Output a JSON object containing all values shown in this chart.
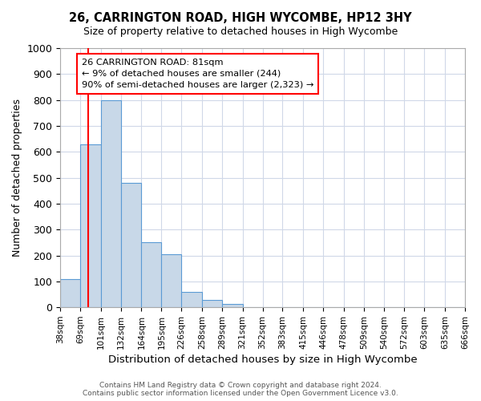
{
  "title": "26, CARRINGTON ROAD, HIGH WYCOMBE, HP12 3HY",
  "subtitle": "Size of property relative to detached houses in High Wycombe",
  "xlabel": "Distribution of detached houses by size in High Wycombe",
  "ylabel": "Number of detached properties",
  "bin_edges": [
    38,
    69,
    101,
    132,
    164,
    195,
    226,
    258,
    289,
    321,
    352,
    383,
    415,
    446,
    478,
    509,
    540,
    572,
    603,
    635,
    666
  ],
  "bar_heights": [
    110,
    630,
    800,
    480,
    250,
    205,
    60,
    28,
    14,
    0,
    0,
    0,
    0,
    0,
    0,
    0,
    0,
    0,
    0,
    0
  ],
  "bar_color": "#c8d8e8",
  "bar_edge_color": "#5b9bd5",
  "grid_color": "#d0d8e8",
  "vline_x": 81,
  "vline_color": "red",
  "ylim": [
    0,
    1000
  ],
  "annotation_text": "26 CARRINGTON ROAD: 81sqm\n← 9% of detached houses are smaller (244)\n90% of semi-detached houses are larger (2,323) →",
  "annotation_box_color": "white",
  "annotation_box_edge_color": "red",
  "footer_line1": "Contains HM Land Registry data © Crown copyright and database right 2024.",
  "footer_line2": "Contains public sector information licensed under the Open Government Licence v3.0.",
  "tick_labels": [
    "38sqm",
    "69sqm",
    "101sqm",
    "132sqm",
    "164sqm",
    "195sqm",
    "226sqm",
    "258sqm",
    "289sqm",
    "321sqm",
    "352sqm",
    "383sqm",
    "415sqm",
    "446sqm",
    "478sqm",
    "509sqm",
    "540sqm",
    "572sqm",
    "603sqm",
    "635sqm",
    "666sqm"
  ]
}
